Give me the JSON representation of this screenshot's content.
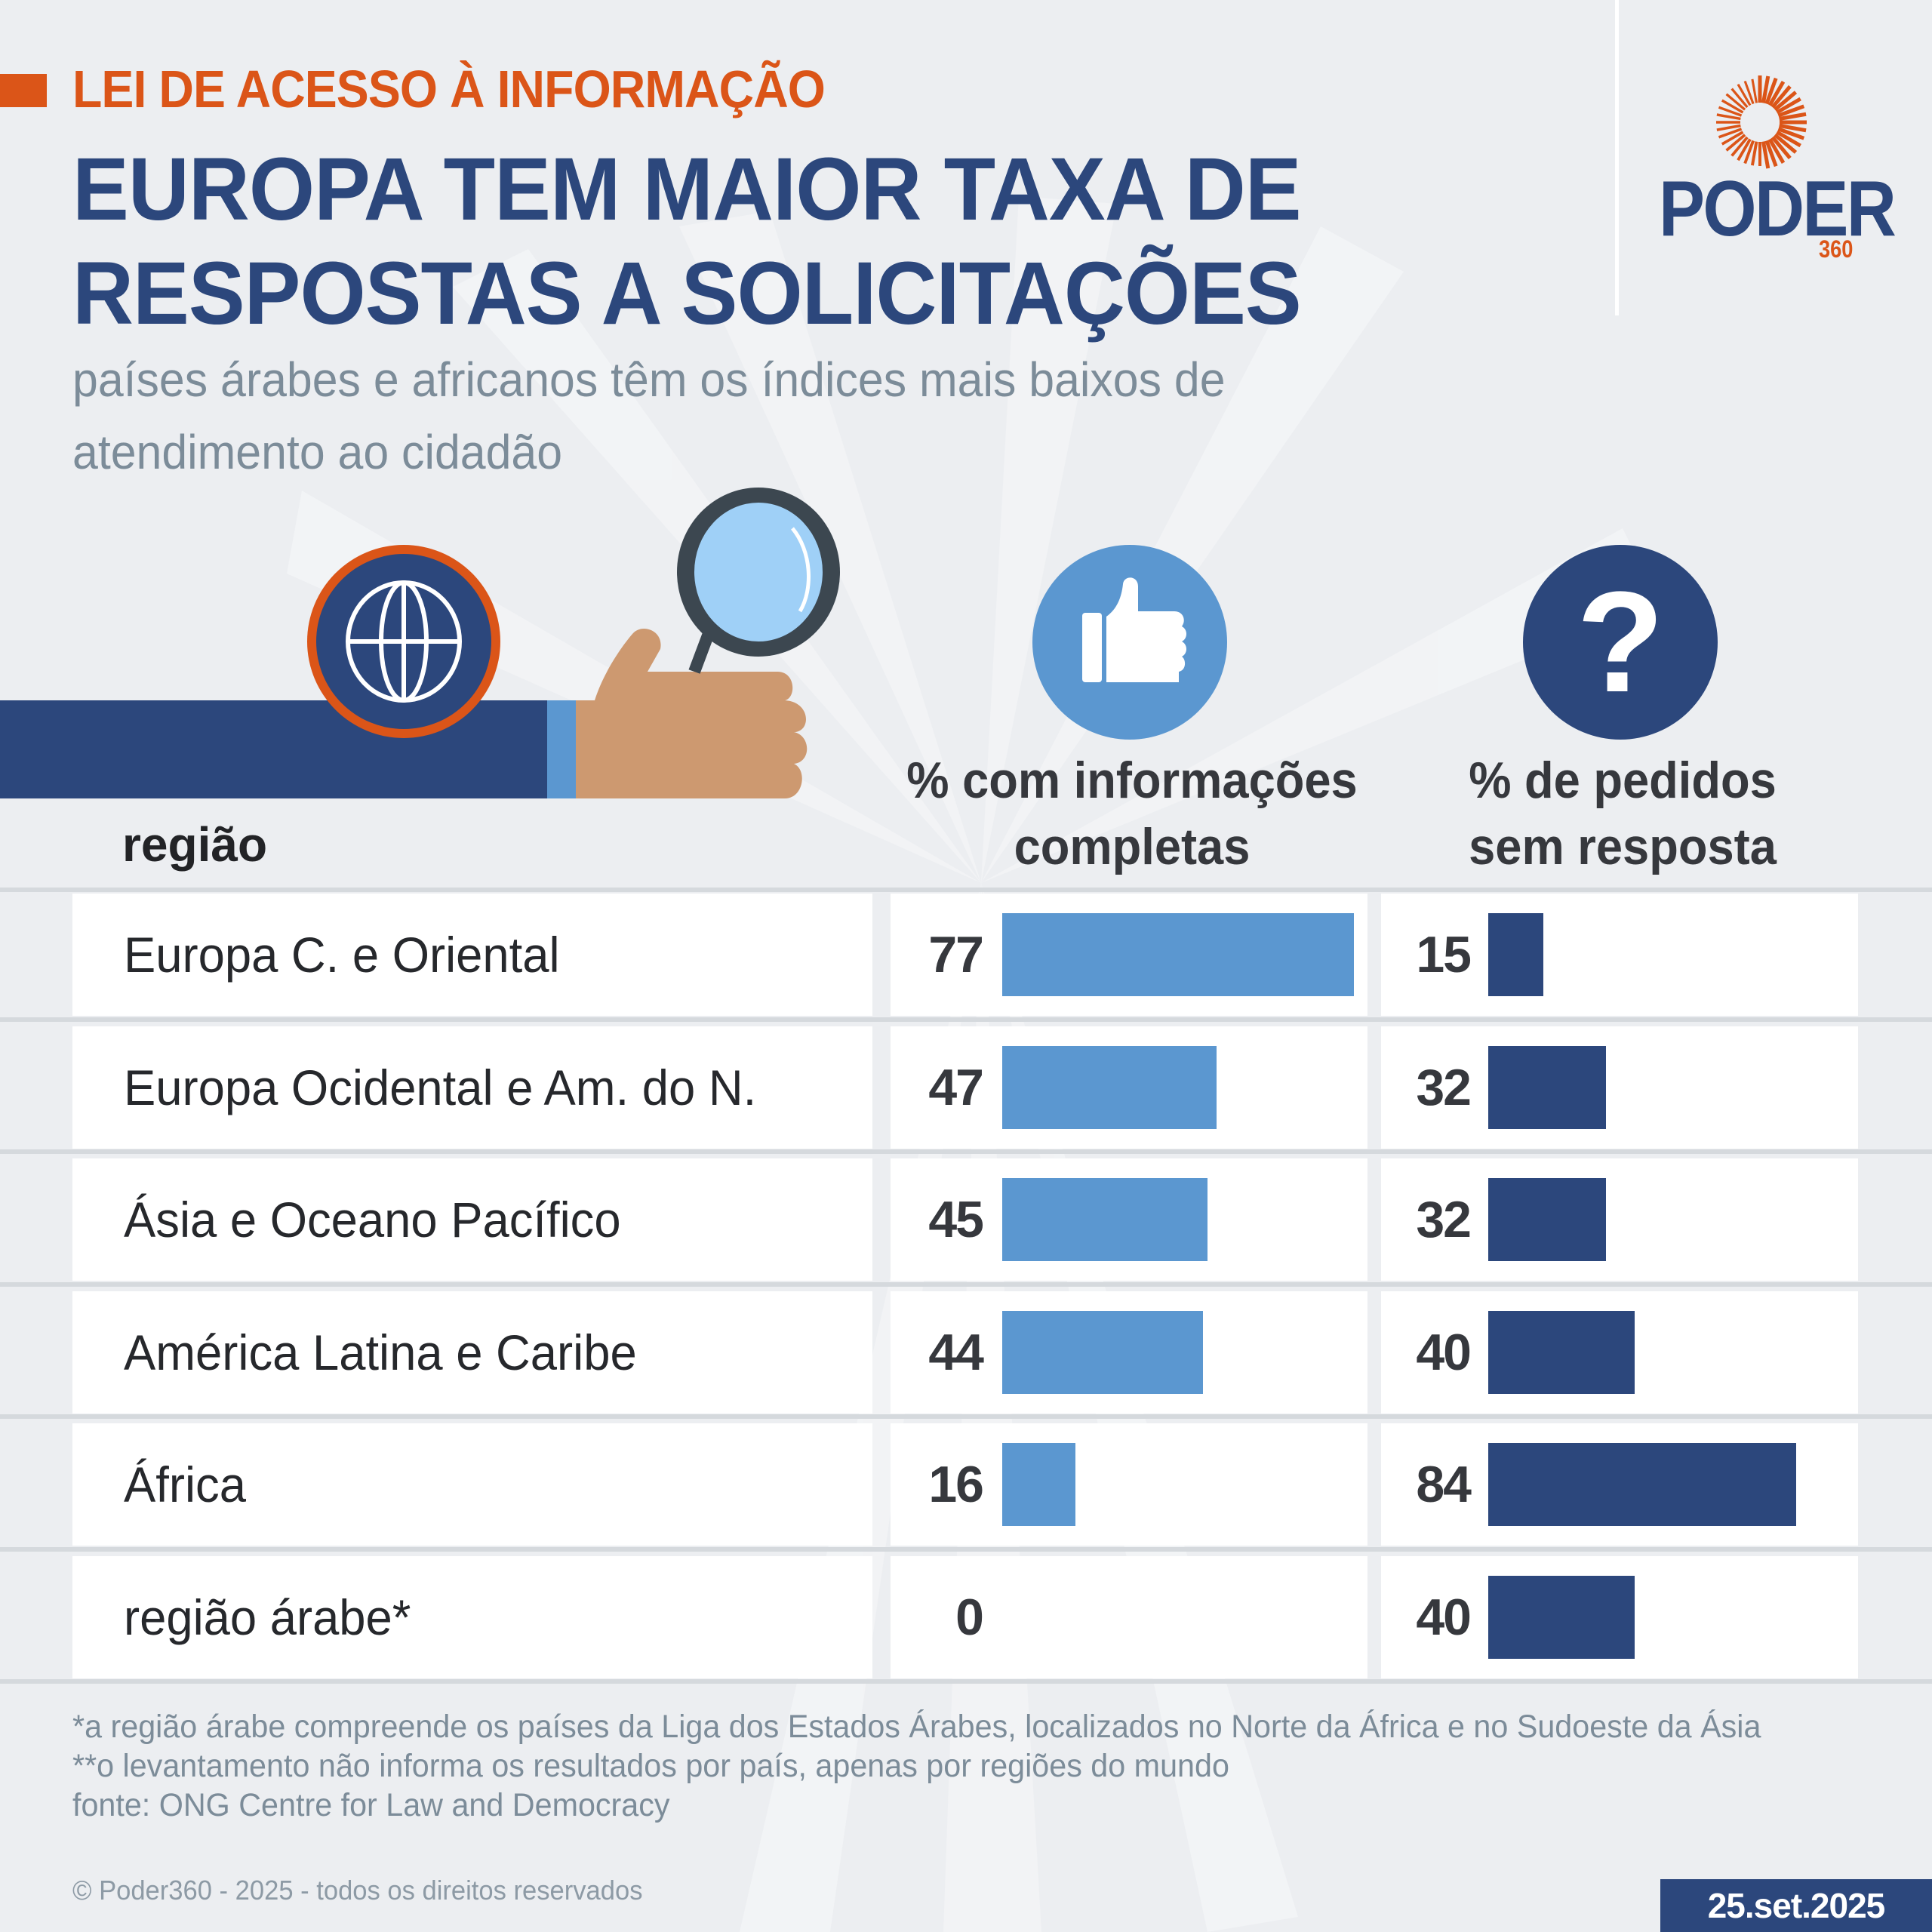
{
  "header": {
    "kicker": "LEI DE ACESSO À INFORMAÇÃO",
    "title_line1": "EUROPA TEM MAIOR TAXA DE",
    "title_line2": "RESPOSTAS A SOLICITAÇÕES",
    "subtitle_line1": "países árabes e africanos têm os índices mais baixos de",
    "subtitle_line2": "atendimento ao cidadão"
  },
  "logo": {
    "word": "PODER",
    "number": "360",
    "icon": "sunburst-logo-icon"
  },
  "illustration": {
    "globe_icon": "globe-icon",
    "magnifier_icon": "magnifying-glass-icon",
    "hand_icon": "hand-holding-icon"
  },
  "table": {
    "region_header": "região",
    "col1_header_line1": "% com informações",
    "col1_header_line2": "completas",
    "col1_icon": "thumbs-up-icon",
    "col2_header_line1": "% de pedidos",
    "col2_header_line2": "sem resposta",
    "col2_icon": "question-mark-icon",
    "col2_icon_glyph": "?"
  },
  "colors": {
    "accent_orange": "#db5518",
    "navy": "#2c477c",
    "light_blue": "#5b97d0",
    "text_gray": "#7c8c99",
    "background": "#eceef1"
  },
  "chart_data": {
    "type": "bar",
    "orientation": "horizontal",
    "title": "EUROPA TEM MAIOR TAXA DE RESPOSTAS A SOLICITAÇÕES",
    "subtitle": "países árabes e africanos têm os índices mais baixos de atendimento ao cidadão",
    "categories": [
      "Europa C. e Oriental",
      "Europa Ocidental e Am. do N.",
      "Ásia e Oceano Pacífico",
      "América Latina e Caribe",
      "África",
      "região árabe*"
    ],
    "series": [
      {
        "name": "% com informações completas",
        "color": "#5b97d0",
        "values": [
          77,
          47,
          45,
          44,
          16,
          0
        ]
      },
      {
        "name": "% de pedidos sem resposta",
        "color": "#2c477c",
        "values": [
          15,
          32,
          32,
          40,
          84,
          40
        ]
      }
    ],
    "xlabel": "",
    "ylabel": "região",
    "grid": false,
    "unit": "%"
  },
  "footer": {
    "note1": "*a região árabe compreende os países da Liga dos Estados Árabes, localizados no Norte da África e no Sudoeste da Ásia",
    "note2": "**o levantamento não informa os resultados por país, apenas por regiões do mundo",
    "source": "fonte: ONG Centre for Law and Democracy",
    "copyright": "© Poder360 - 2025 - todos os direitos reservados",
    "date": "25.set.2025"
  }
}
